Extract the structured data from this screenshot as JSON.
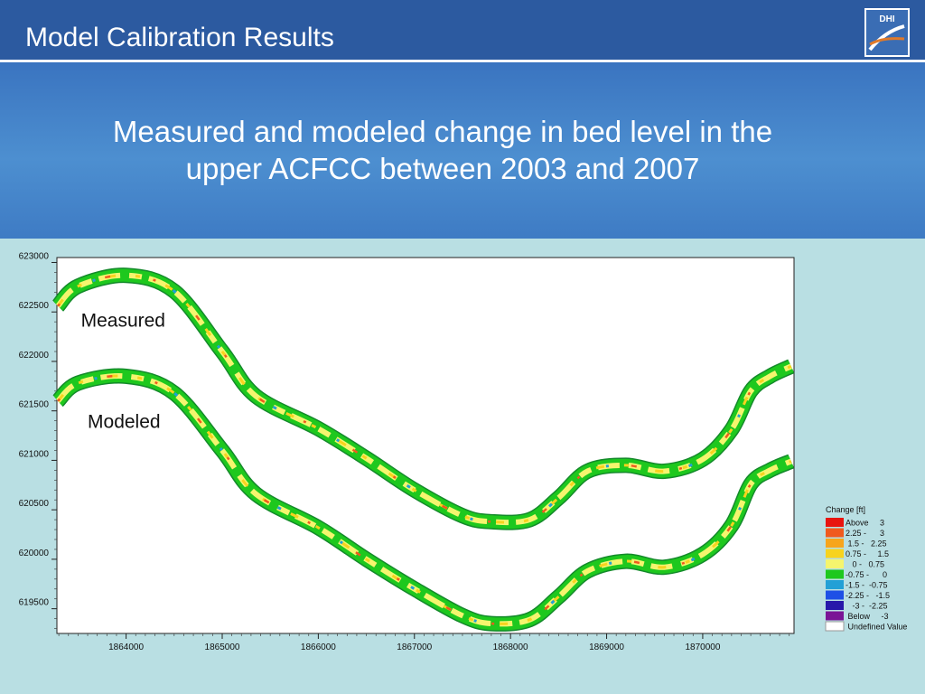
{
  "slide": {
    "title": "Model Calibration Results",
    "subtitle_lines": [
      "Measured and modeled change in bed level in the",
      "upper ACFCC between 2003 and 2007"
    ],
    "logo_text": "DHI"
  },
  "colors": {
    "title_bar": "#2c5aa0",
    "banner": "#4d8fd0",
    "slide_background": "#b9dfe3",
    "plot_background": "#ffffff",
    "channel_base": "#2ec82e"
  },
  "chart_data": {
    "type": "heatmap",
    "title": "",
    "xlabel": "",
    "ylabel": "",
    "xlim": [
      1863280,
      1870950
    ],
    "ylim": [
      619250,
      623050
    ],
    "x_ticks": [
      1864000,
      1865000,
      1866000,
      1867000,
      1868000,
      1869000,
      1870000
    ],
    "y_ticks": [
      619500,
      620000,
      620500,
      621000,
      621500,
      622000,
      622500,
      623000
    ],
    "grid": false,
    "annotations": [
      {
        "text": "Measured",
        "x": 1863530,
        "y": 622350
      },
      {
        "text": "Modeled",
        "x": 1863600,
        "y": 621330
      }
    ],
    "series": [
      {
        "name": "Measured",
        "centerline": [
          [
            1863290,
            622560
          ],
          [
            1863500,
            622760
          ],
          [
            1864000,
            622870
          ],
          [
            1864500,
            622710
          ],
          [
            1865000,
            622100
          ],
          [
            1865350,
            621650
          ],
          [
            1866000,
            621320
          ],
          [
            1866500,
            621020
          ],
          [
            1867000,
            620700
          ],
          [
            1867500,
            620440
          ],
          [
            1867800,
            620380
          ],
          [
            1868200,
            620400
          ],
          [
            1868500,
            620620
          ],
          [
            1868800,
            620890
          ],
          [
            1869200,
            620950
          ],
          [
            1869600,
            620890
          ],
          [
            1870000,
            621010
          ],
          [
            1870300,
            621310
          ],
          [
            1870500,
            621700
          ],
          [
            1870700,
            621850
          ],
          [
            1870920,
            621950
          ]
        ]
      },
      {
        "name": "Modeled",
        "centerline": [
          [
            1863290,
            621600
          ],
          [
            1863500,
            621780
          ],
          [
            1864000,
            621850
          ],
          [
            1864500,
            621680
          ],
          [
            1865000,
            621100
          ],
          [
            1865350,
            620660
          ],
          [
            1866000,
            620320
          ],
          [
            1866500,
            620000
          ],
          [
            1867000,
            619700
          ],
          [
            1867500,
            619430
          ],
          [
            1867800,
            619350
          ],
          [
            1868200,
            619390
          ],
          [
            1868500,
            619620
          ],
          [
            1868800,
            619880
          ],
          [
            1869200,
            619980
          ],
          [
            1869600,
            619920
          ],
          [
            1870000,
            620050
          ],
          [
            1870300,
            620340
          ],
          [
            1870500,
            620760
          ],
          [
            1870700,
            620900
          ],
          [
            1870920,
            620990
          ]
        ]
      }
    ],
    "legend": {
      "title": "Change [ft]",
      "placement": "right",
      "items": [
        {
          "label": "Above     3",
          "color": "#e8140f"
        },
        {
          "label": "2.25 -      3",
          "color": "#f05a1e"
        },
        {
          "label": " 1.5 -   2.25",
          "color": "#f7a51c"
        },
        {
          "label": "0.75 -     1.5",
          "color": "#f7d31e"
        },
        {
          "label": "   0 -   0.75",
          "color": "#f5f56e"
        },
        {
          "label": "-0.75 -      0",
          "color": "#1ec81e"
        },
        {
          "label": "-1.5 -  -0.75",
          "color": "#22a0d6"
        },
        {
          "label": "-2.25 -   -1.5",
          "color": "#1e50e6"
        },
        {
          "label": "   -3 -  -2.25",
          "color": "#2818aa"
        },
        {
          "label": " Below     -3",
          "color": "#7a1496"
        },
        {
          "label": " Undefined Value",
          "color": "#ffffff"
        }
      ]
    }
  }
}
